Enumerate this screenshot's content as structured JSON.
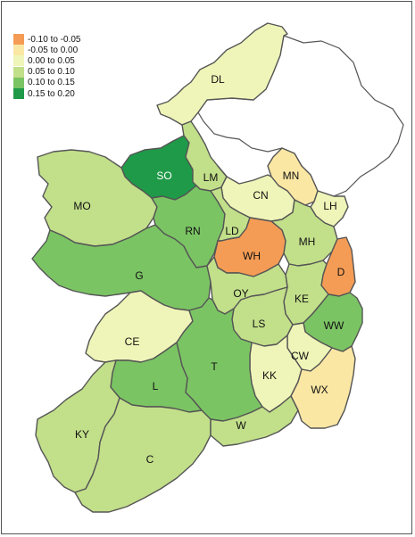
{
  "legend": {
    "items": [
      {
        "label": "-0.10 to -0.05",
        "color": "#f49c55"
      },
      {
        "label": "-0.05 to 0.00",
        "color": "#fbe7a4"
      },
      {
        "label": "0.00 to 0.05",
        "color": "#eff5b8"
      },
      {
        "label": "0.05 to 0.10",
        "color": "#c2df8a"
      },
      {
        "label": "0.10 to 0.15",
        "color": "#7bc464"
      },
      {
        "label": "0.15 to 0.20",
        "color": "#1f9a48"
      }
    ]
  },
  "counties": [
    {
      "code": "DL",
      "class": "0.00 to 0.05"
    },
    {
      "code": "SO",
      "class": "0.15 to 0.20"
    },
    {
      "code": "LM",
      "class": "0.05 to 0.10"
    },
    {
      "code": "MO",
      "class": "0.05 to 0.10"
    },
    {
      "code": "RN",
      "class": "0.10 to 0.15"
    },
    {
      "code": "G",
      "class": "0.10 to 0.15"
    },
    {
      "code": "MN",
      "class": "-0.05 to 0.00"
    },
    {
      "code": "CN",
      "class": "0.00 to 0.05"
    },
    {
      "code": "LH",
      "class": "0.00 to 0.05"
    },
    {
      "code": "LD",
      "class": "0.05 to 0.10"
    },
    {
      "code": "MH",
      "class": "0.05 to 0.10"
    },
    {
      "code": "WH",
      "class": "-0.10 to -0.05"
    },
    {
      "code": "D",
      "class": "-0.10 to -0.05"
    },
    {
      "code": "KE",
      "class": "0.05 to 0.10"
    },
    {
      "code": "OY",
      "class": "0.05 to 0.10"
    },
    {
      "code": "LS",
      "class": "0.05 to 0.10"
    },
    {
      "code": "WW",
      "class": "0.10 to 0.15"
    },
    {
      "code": "CE",
      "class": "0.00 to 0.05"
    },
    {
      "code": "CW",
      "class": "0.00 to 0.05"
    },
    {
      "code": "KK",
      "class": "0.00 to 0.05"
    },
    {
      "code": "T",
      "class": "0.10 to 0.15"
    },
    {
      "code": "L",
      "class": "0.10 to 0.15"
    },
    {
      "code": "WX",
      "class": "-0.05 to 0.00"
    },
    {
      "code": "KY",
      "class": "0.05 to 0.10"
    },
    {
      "code": "C",
      "class": "0.05 to 0.10"
    },
    {
      "code": "W",
      "class": "0.05 to 0.10"
    }
  ]
}
